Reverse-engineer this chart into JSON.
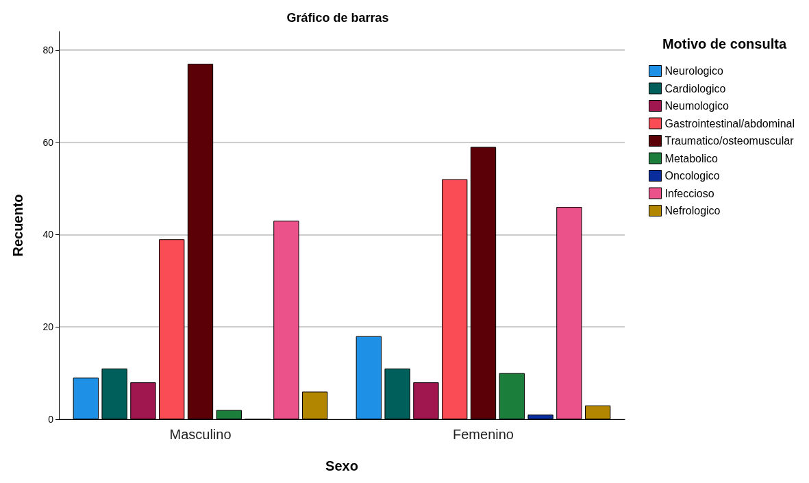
{
  "chart_data": {
    "type": "bar",
    "title": "Gráfico de barras",
    "xlabel": "Sexo",
    "ylabel": "Recuento",
    "legend_title": "Motivo de consulta",
    "categories": [
      "Masculino",
      "Femenino"
    ],
    "series": [
      {
        "name": "Neurologico",
        "color": "#1e90e6",
        "values": [
          9,
          18
        ]
      },
      {
        "name": "Cardiologico",
        "color": "#005f5a",
        "values": [
          11,
          11
        ]
      },
      {
        "name": "Neumologico",
        "color": "#a0174f",
        "values": [
          8,
          8
        ]
      },
      {
        "name": "Gastrointestinal/abdominal",
        "color": "#f94c55",
        "values": [
          39,
          52
        ]
      },
      {
        "name": "Traumatico/osteomuscular",
        "color": "#5c0008",
        "values": [
          77,
          59
        ]
      },
      {
        "name": "Metabolico",
        "color": "#1b7e3a",
        "values": [
          2,
          10
        ]
      },
      {
        "name": "Oncologico",
        "color": "#0a2d9e",
        "values": [
          0,
          1
        ]
      },
      {
        "name": "Infeccioso",
        "color": "#eb5289",
        "values": [
          43,
          46
        ]
      },
      {
        "name": "Nefrologico",
        "color": "#b38600",
        "values": [
          6,
          3
        ]
      }
    ],
    "ylim": [
      0,
      84
    ],
    "yticks": [
      0,
      20,
      40,
      60,
      80
    ],
    "grid": "y",
    "legend": "top right"
  }
}
